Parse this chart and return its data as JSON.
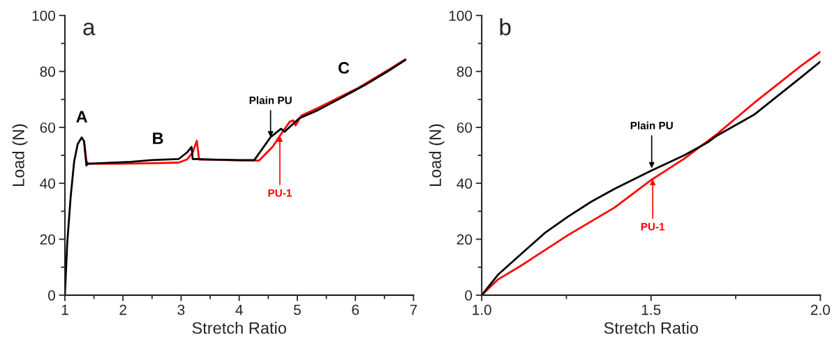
{
  "chart_data": [
    {
      "type": "line",
      "xlabel": "Stretch Ratio",
      "ylabel": "Load (N)",
      "xlim": [
        1,
        7
      ],
      "ylim": [
        0,
        100
      ],
      "xticks": [
        1,
        {
          "value": 1.5,
          "label": null
        },
        2,
        {
          "value": 2.5,
          "label": null
        },
        3,
        {
          "value": 3.5,
          "label": null
        },
        4,
        {
          "value": 4.5,
          "label": null
        },
        5,
        {
          "value": 5.5,
          "label": null
        },
        6,
        {
          "value": 6.5,
          "label": null
        },
        7
      ],
      "yticks": [
        0,
        {
          "value": 10,
          "label": null
        },
        20,
        {
          "value": 30,
          "label": null
        },
        40,
        {
          "value": 50,
          "label": null
        },
        60,
        {
          "value": 70,
          "label": null
        },
        80,
        {
          "value": 90,
          "label": null
        },
        100
      ],
      "grid": false,
      "legend": false,
      "series": [
        {
          "color": "#ff0000",
          "x": [
            1.33,
            1.37,
            1.4,
            2.0,
            2.5,
            2.96,
            3.1,
            3.2,
            3.27,
            3.31,
            3.5,
            4.0,
            4.34,
            4.58,
            4.74,
            4.87,
            4.93,
            4.97,
            5.07,
            5.35,
            5.76,
            6.04,
            6.57,
            6.86
          ],
          "values": [
            55,
            48,
            47,
            47,
            47.2,
            47.4,
            48.5,
            51,
            55.2,
            48.5,
            48.5,
            48.2,
            48.1,
            53.2,
            58.2,
            62,
            62.5,
            60.7,
            64.2,
            66.9,
            71.1,
            74,
            80.6,
            84.3
          ]
        },
        {
          "color": "#000000",
          "x": [
            1.0,
            1.04,
            1.1,
            1.16,
            1.22,
            1.29,
            1.33,
            1.37,
            1.4,
            2.14,
            2.5,
            2.96,
            3.1,
            3.18,
            3.2,
            3.5,
            4.0,
            4.26,
            4.54,
            4.72,
            4.78,
            5.03,
            5.35,
            5.76,
            6.17,
            6.57,
            6.86
          ],
          "values": [
            0,
            18.6,
            35.3,
            47.9,
            54,
            56.4,
            55,
            46.4,
            47,
            47.7,
            48.3,
            48.7,
            51,
            53,
            48.7,
            48.5,
            48.3,
            48.3,
            56.5,
            59.5,
            58.4,
            63.2,
            66.1,
            70.6,
            75.2,
            80.2,
            84.1
          ]
        }
      ],
      "annotations": [
        "a",
        {
          "text": "A",
          "x": 1.29,
          "y": 56.4
        },
        {
          "text": "B",
          "x": 2.6,
          "y": 48
        },
        {
          "text": "C",
          "x": 5.9,
          "y": 72.5
        },
        {
          "text": "Plain PU",
          "x": 4.54,
          "y": 56.5
        },
        {
          "text": "PU-1",
          "x": 4.7,
          "y": 57
        }
      ]
    },
    {
      "type": "line",
      "xlabel": "Stretch Ratio",
      "ylabel": "Load (N)",
      "xlim": [
        1,
        2
      ],
      "ylim": [
        0,
        100
      ],
      "xticks": [
        {
          "value": 1,
          "label": "1.0"
        },
        {
          "value": 1.25,
          "label": null
        },
        {
          "value": 1.5,
          "label": "1.5"
        },
        {
          "value": 1.75,
          "label": null
        },
        {
          "value": 2,
          "label": "2.0"
        }
      ],
      "yticks": [
        0,
        {
          "value": 10,
          "label": null
        },
        20,
        {
          "value": 30,
          "label": null
        },
        40,
        {
          "value": 50,
          "label": null
        },
        60,
        {
          "value": 70,
          "label": null
        },
        80,
        {
          "value": 90,
          "label": null
        },
        100
      ],
      "grid": false,
      "legend": false,
      "series": [
        {
          "color": "#ff0000",
          "x": [
            1.0,
            1.048,
            1.117,
            1.254,
            1.392,
            1.502,
            1.598,
            1.694,
            1.804,
            1.942,
            2.0
          ],
          "values": [
            0,
            5.6,
            10.6,
            21.4,
            31.3,
            41.3,
            48.8,
            57.5,
            68.7,
            81.9,
            87
          ]
        },
        {
          "color": "#000000",
          "x": [
            1.0,
            1.048,
            1.117,
            1.186,
            1.254,
            1.323,
            1.392,
            1.502,
            1.598,
            1.667,
            1.694,
            1.804,
            1.942,
            2.0
          ],
          "values": [
            0,
            7.3,
            14.8,
            22.2,
            28,
            33.4,
            38,
            44.6,
            50,
            54.6,
            57,
            64.5,
            77.8,
            83.5
          ]
        }
      ],
      "annotations": [
        "b",
        {
          "text": "Plain PU",
          "x": 1.502,
          "y": 45.4
        },
        {
          "text": "PU-1",
          "x": 1.505,
          "y": 41.5
        }
      ]
    }
  ]
}
